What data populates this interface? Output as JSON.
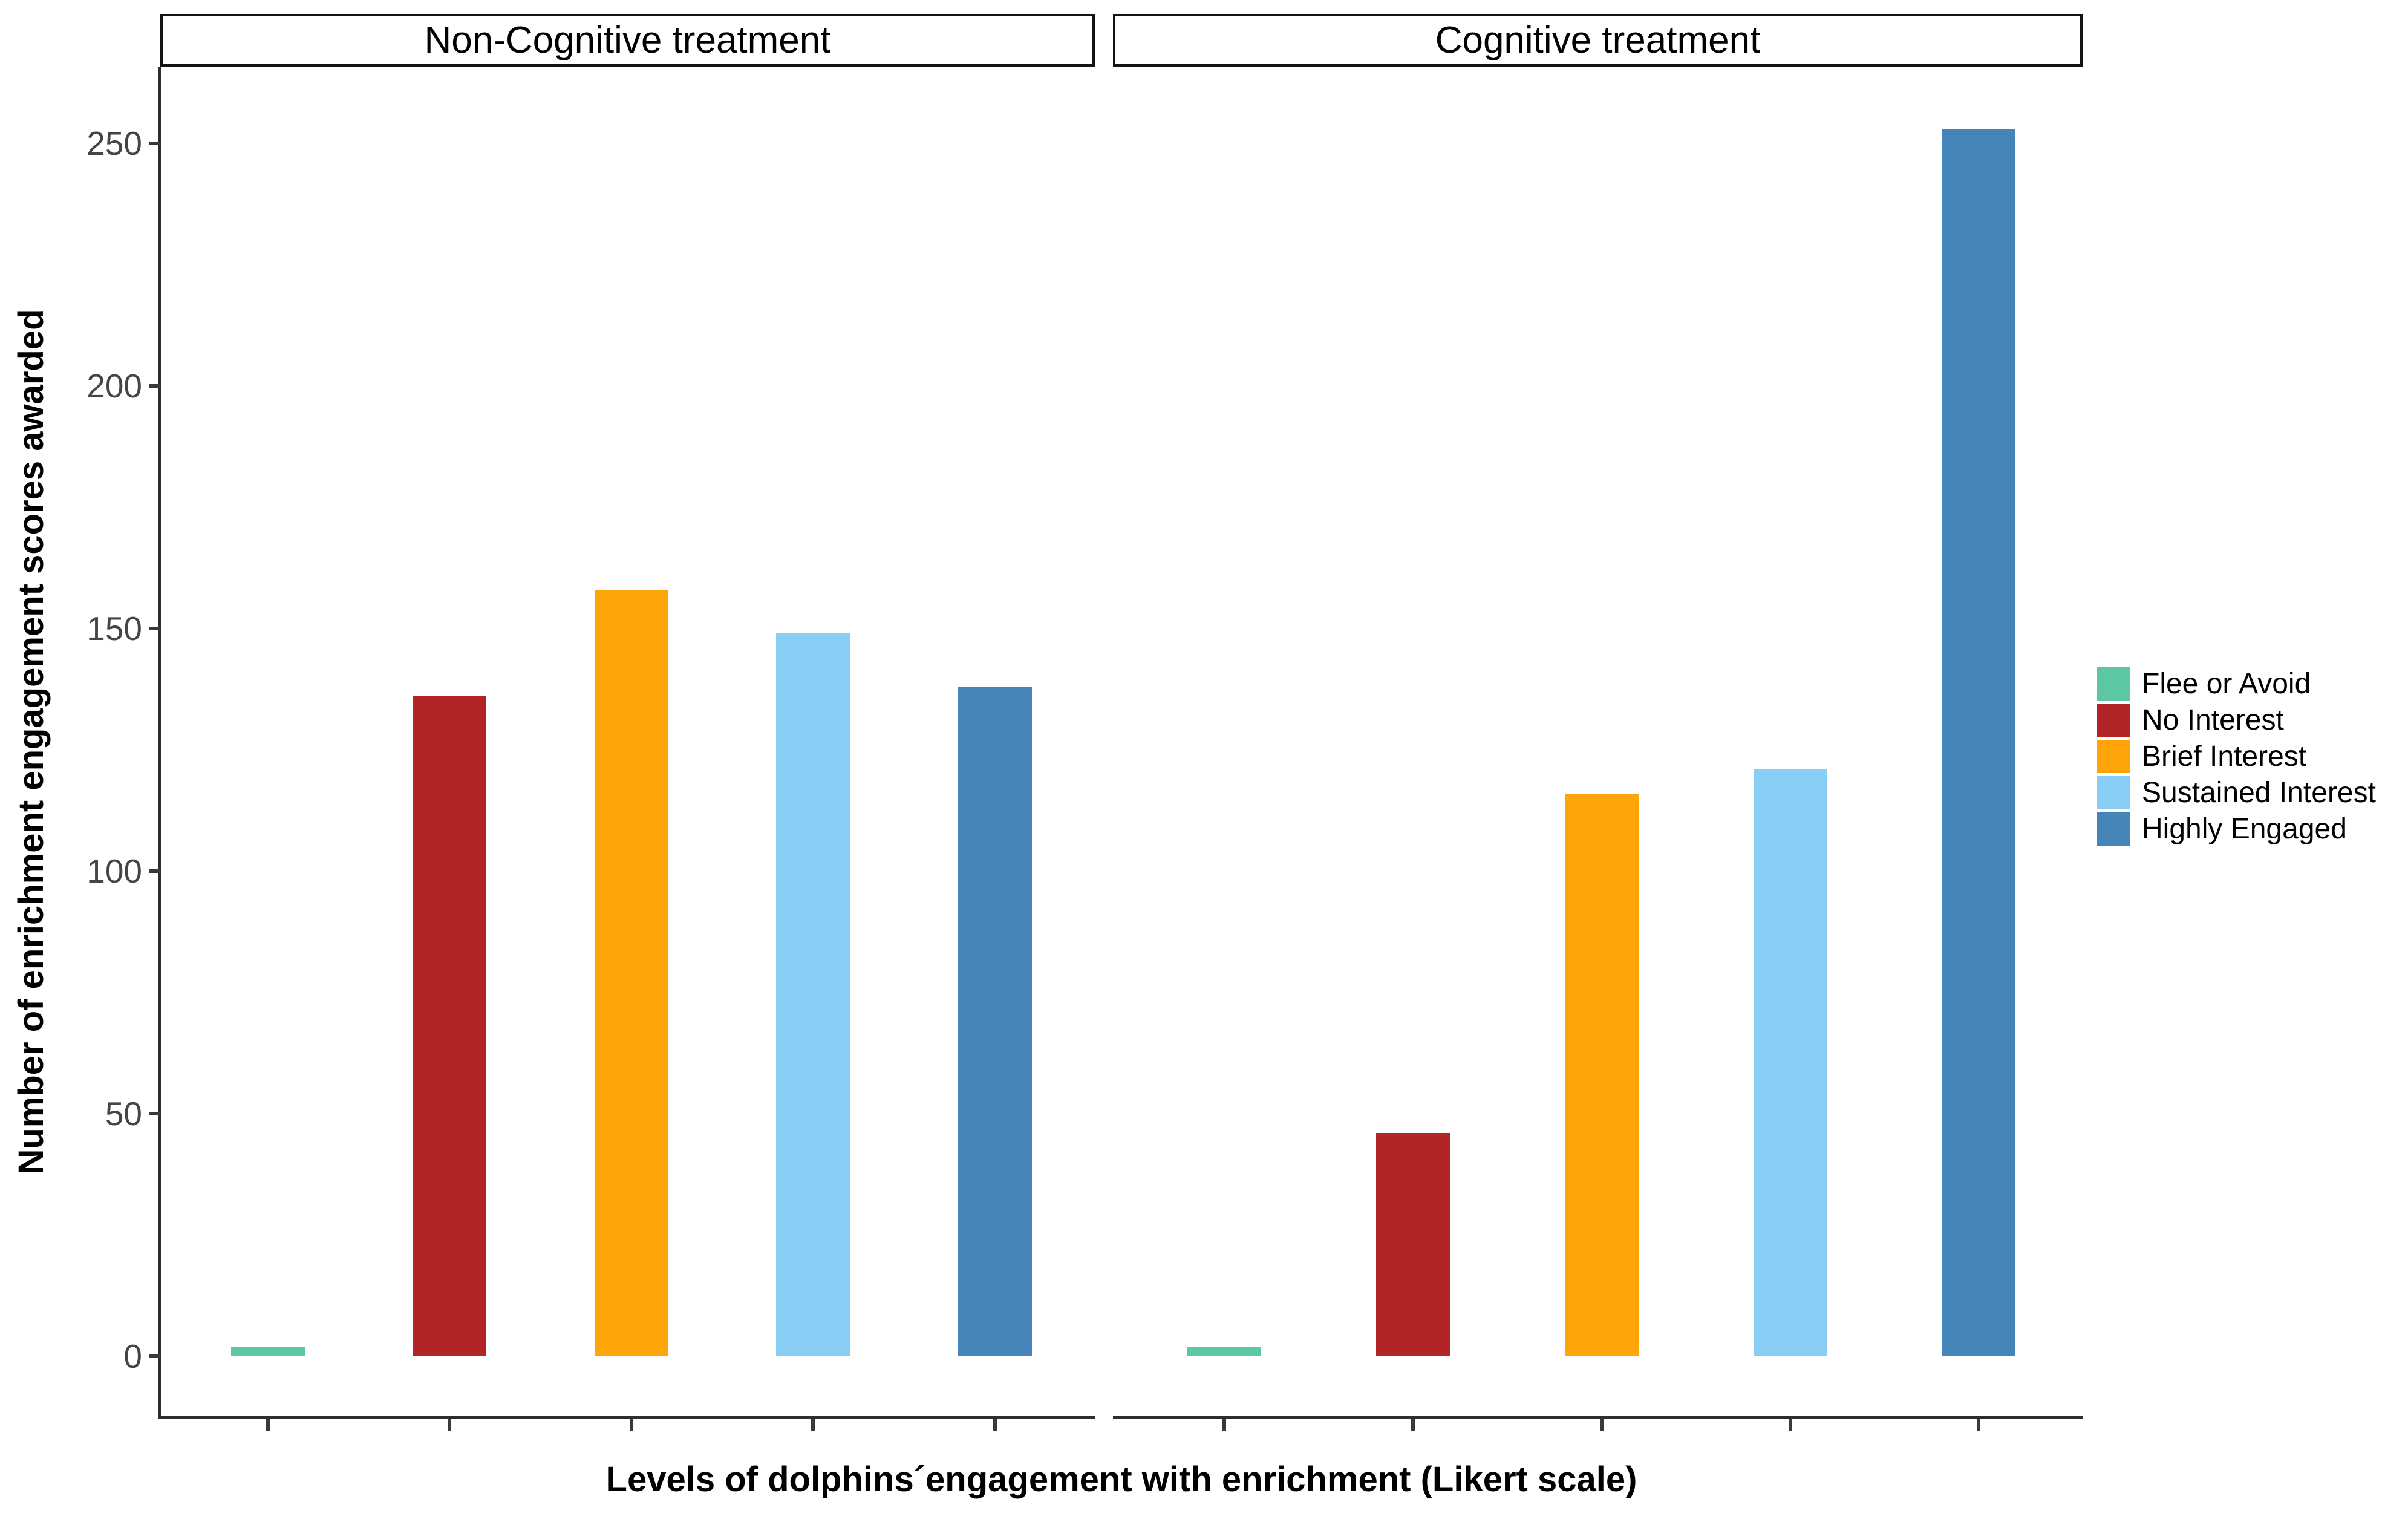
{
  "chart_data": {
    "type": "bar",
    "title": "",
    "facets": [
      {
        "label": "Non-Cognitive treatment",
        "values": [
          2,
          136,
          158,
          149,
          138
        ]
      },
      {
        "label": "Cognitive treatment",
        "values": [
          2,
          46,
          116,
          121,
          253
        ]
      }
    ],
    "categories": [
      "Flee or Avoid",
      "No Interest",
      "Brief Interest",
      "Sustained Interest",
      "Highly Engaged"
    ],
    "legend": [
      {
        "label": "Flee or Avoid",
        "color": "#5BC8A1"
      },
      {
        "label": "No Interest",
        "color": "#B32427"
      },
      {
        "label": "Brief Interest",
        "color": "#FFA50A"
      },
      {
        "label": "Sustained Interest",
        "color": "#89CFF5"
      },
      {
        "label": "Highly Engaged",
        "color": "#4685BA"
      }
    ],
    "xlabel": "Levels of dolphins´engagement with enrichment (Likert scale)",
    "ylabel": "Number of enrichment engagement scores awarded",
    "yticks": [
      0,
      50,
      100,
      150,
      200,
      250
    ],
    "ylim": [
      0,
      265
    ],
    "grid": false,
    "legend_position": "right"
  }
}
